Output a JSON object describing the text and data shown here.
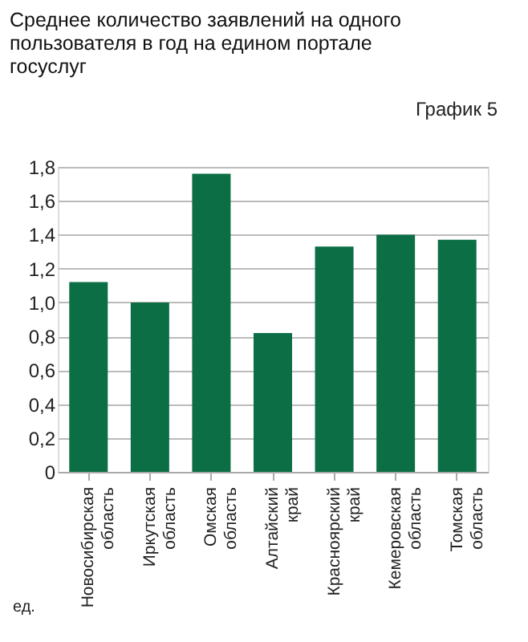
{
  "chart_data": {
    "type": "bar",
    "title": "Среднее количество заявлений на одного пользователя в год на едином портале госуслуг",
    "annotations": [
      "График 5"
    ],
    "ylabel": "ед.",
    "categories": [
      "Новосибирская область",
      "Иркутская область",
      "Омская область",
      "Алтайский край",
      "Красноярский край",
      "Кемеровская область",
      "Томская область"
    ],
    "values": [
      1.12,
      1.0,
      1.76,
      0.82,
      1.33,
      1.4,
      1.37
    ],
    "color": "#0b6e45",
    "ylim": [
      0,
      1.8
    ],
    "yticks": [
      {
        "value": 0,
        "label": "0"
      },
      {
        "value": 0.2,
        "label": "0,2"
      },
      {
        "value": 0.4,
        "label": "0,4"
      },
      {
        "value": 0.6,
        "label": "0,6"
      },
      {
        "value": 0.8,
        "label": "0,8"
      },
      {
        "value": 1.0,
        "label": "1,0"
      },
      {
        "value": 1.2,
        "label": "1,2"
      },
      {
        "value": 1.4,
        "label": "1,4"
      },
      {
        "value": 1.6,
        "label": "1,6"
      },
      {
        "value": 1.8,
        "label": "1,8"
      }
    ],
    "grid": "y"
  }
}
